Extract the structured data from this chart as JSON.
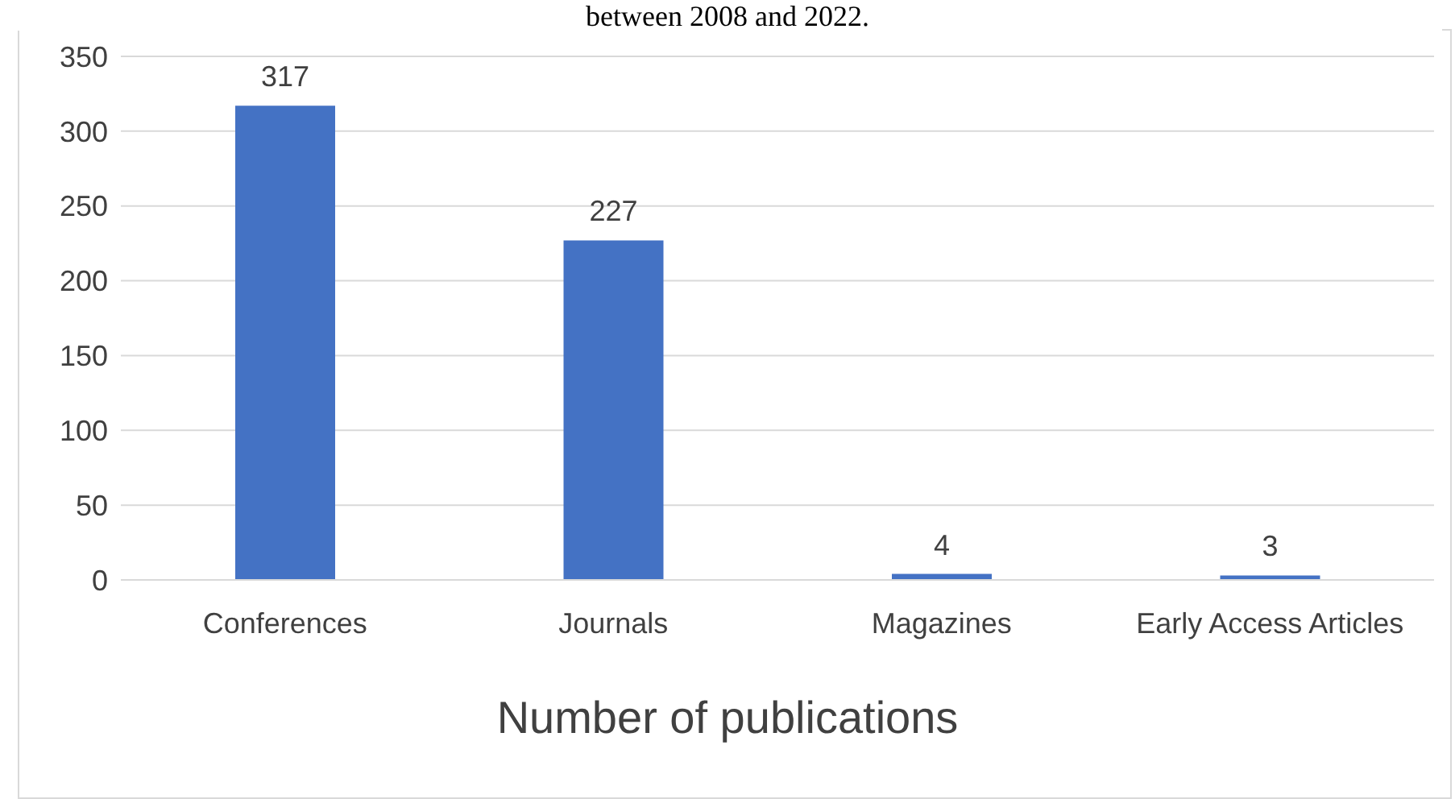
{
  "chart_data": {
    "type": "bar",
    "title": "Number of publications",
    "annotations": [
      "between 2008 and 2022."
    ],
    "categories": [
      "Conferences",
      "Journals",
      "Magazines",
      "Early Access Articles"
    ],
    "values": [
      317,
      227,
      4,
      3
    ],
    "color": "#4472c4",
    "ylim": [
      0,
      350
    ],
    "yticks": [
      0,
      50,
      100,
      150,
      200,
      250,
      300,
      350
    ],
    "grid": "y",
    "data_labels": true
  }
}
